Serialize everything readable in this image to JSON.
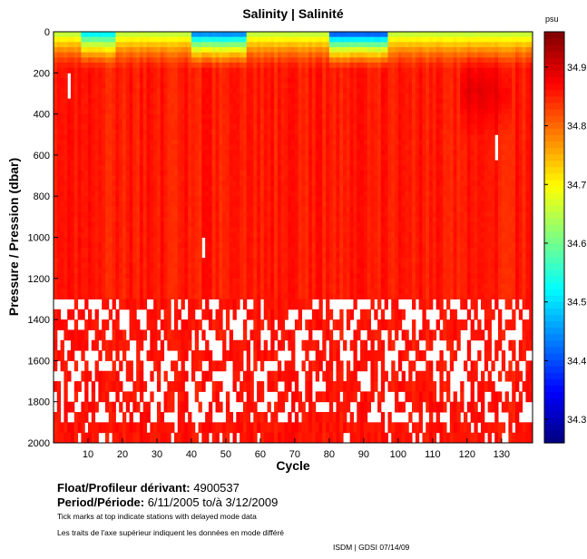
{
  "chart_data": {
    "type": "heatmap",
    "title": "Salinity | Salinité",
    "xlabel": "Cycle",
    "ylabel": "Pressure / Pression (dbar)",
    "xlim": [
      0,
      139
    ],
    "ylim": [
      2000,
      0
    ],
    "x_ticks": [
      10,
      20,
      30,
      40,
      50,
      60,
      70,
      80,
      90,
      100,
      110,
      120,
      130
    ],
    "y_ticks": [
      0,
      200,
      400,
      600,
      800,
      1000,
      1200,
      1400,
      1600,
      1800,
      2000
    ],
    "colorbar": {
      "unit": "psu",
      "min": 34.26,
      "max": 34.96,
      "ticks": [
        34.3,
        34.4,
        34.5,
        34.6,
        34.7,
        34.8,
        34.9
      ]
    },
    "deep_layer_start_dbar": 1300,
    "surface_fresh_cycles": [
      {
        "range": [
          8,
          17
        ],
        "min_salinity": 34.52
      },
      {
        "range": [
          40,
          55
        ],
        "min_salinity": 34.45
      },
      {
        "range": [
          80,
          96
        ],
        "min_salinity": 34.42
      }
    ],
    "gaps": [
      {
        "cycle": 4,
        "from_dbar": 200,
        "to_dbar": 310
      },
      {
        "cycle": 43,
        "from_dbar": 1000,
        "to_dbar": 1090
      },
      {
        "cycle": 128,
        "from_dbar": 500,
        "to_dbar": 610
      }
    ]
  },
  "info": {
    "float_label": "Float/Profileur dérivant:",
    "float_id": "4900537",
    "period_label": "Period/Période:",
    "period_start": "6/11/2005",
    "period_sep": "to/à",
    "period_end": "3/12/2009",
    "note_en": "Tick marks at top indicate stations with delayed mode data",
    "note_fr": "Les traits de l'axe supérieur indiquent les données en mode différé",
    "credit": "ISDM | GDSI  07/14/09"
  }
}
